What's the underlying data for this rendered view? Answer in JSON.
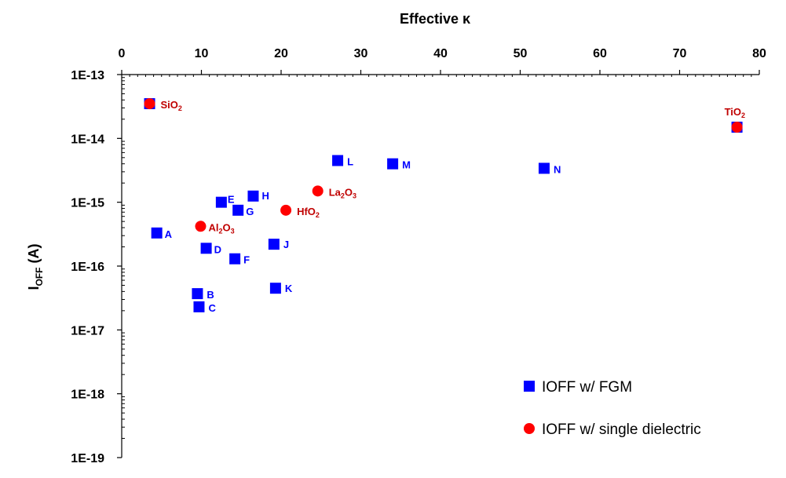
{
  "chart_data": {
    "type": "scatter",
    "x_axis": {
      "label": "Effective κ",
      "position": "top",
      "range": [
        0,
        80
      ],
      "ticks": [
        0,
        10,
        20,
        30,
        40,
        50,
        60,
        70,
        80
      ],
      "tick_labels": [
        "0",
        "10",
        "20",
        "30",
        "40",
        "50",
        "60",
        "70",
        "80"
      ]
    },
    "y_axis": {
      "label_main": "I",
      "label_sub": "OFF",
      "label_unit": " (A)",
      "scale": "log",
      "range": [
        1e-19,
        1e-13
      ],
      "ticks": [
        1e-19,
        1e-18,
        1e-17,
        1e-16,
        1e-15,
        1e-14,
        1e-13
      ],
      "tick_labels": [
        "1E-19",
        "1E-18",
        "1E-17",
        "1E-16",
        "1E-15",
        "1E-14",
        "1E-13"
      ]
    },
    "grid": false,
    "legend_position": "bottom-right",
    "series": [
      {
        "name": "IOFF w/ FGM",
        "marker": "square",
        "color": "#0000ff",
        "label_color": "#0000ff",
        "points": [
          {
            "label": "A",
            "x": 4.4,
            "y": 3.3e-16
          },
          {
            "label": "B",
            "x": 9.5,
            "y": 3.7e-17
          },
          {
            "label": "C",
            "x": 9.7,
            "y": 2.3e-17
          },
          {
            "label": "D",
            "x": 10.6,
            "y": 1.9e-16
          },
          {
            "label": "E",
            "x": 12.5,
            "y": 1e-15
          },
          {
            "label": "F",
            "x": 14.2,
            "y": 1.3e-16
          },
          {
            "label": "G",
            "x": 14.6,
            "y": 7.5e-16
          },
          {
            "label": "H",
            "x": 16.5,
            "y": 1.25e-15
          },
          {
            "label": "J",
            "x": 19.1,
            "y": 2.2e-16
          },
          {
            "label": "K",
            "x": 19.3,
            "y": 4.5e-17
          },
          {
            "label": "L",
            "x": 27.1,
            "y": 4.5e-15
          },
          {
            "label": "M",
            "x": 34.0,
            "y": 4e-15
          },
          {
            "label": "N",
            "x": 53.0,
            "y": 3.4e-15
          },
          {
            "label": "",
            "x": 3.5,
            "y": 3.5e-14
          },
          {
            "label": "",
            "x": 77.2,
            "y": 1.5e-14
          }
        ]
      },
      {
        "name": "IOFF w/ single dielectric",
        "marker": "circle",
        "color": "#ff0000",
        "label_color": "#c00000",
        "points": [
          {
            "label": "SiO",
            "label_sub": "2",
            "x": 3.5,
            "y": 3.5e-14
          },
          {
            "label": "Al",
            "label_sub": "2",
            "label_mid": "O",
            "label_sub2": "3",
            "x": 9.9,
            "y": 4.2e-16
          },
          {
            "label": "HfO",
            "label_sub": "2",
            "x": 20.6,
            "y": 7.5e-16
          },
          {
            "label": "La",
            "label_sub": "2",
            "label_mid": "O",
            "label_sub2": "3",
            "x": 24.6,
            "y": 1.5e-15
          },
          {
            "label": "TiO",
            "label_sub": "2",
            "x": 77.2,
            "y": 1.5e-14
          }
        ]
      }
    ]
  }
}
